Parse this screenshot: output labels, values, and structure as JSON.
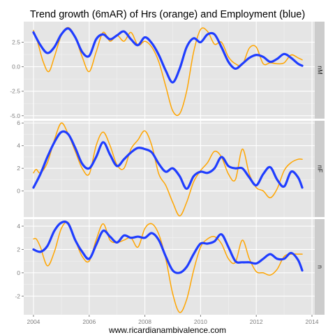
{
  "chart_data": {
    "type": "line",
    "title": "Trend growth (6mAR) of Hrs (orange) and Employment (blue)",
    "caption": "www.ricardianambivalence.com",
    "xlabel": "",
    "ylabel": "",
    "x_ticks": [
      "2004",
      "2006",
      "2008",
      "2010",
      "2012",
      "2014"
    ],
    "xlim": [
      2003.65,
      2014.1
    ],
    "grid": true,
    "legend": "none",
    "colors": {
      "hours": "#FFA500",
      "employment": "#1F3DFF",
      "panel_bg": "#E5E5E5",
      "strip_bg": "#CCCCCC",
      "grid": "#FFFFFF"
    },
    "panels": [
      {
        "strip": "nM",
        "ylim": [
          -5.3,
          4.6
        ],
        "y_ticks": [
          2.5,
          0,
          -2.5,
          -5
        ],
        "y_tick_labels": [
          "2.5",
          "0.0",
          "-2.5",
          "-5.0"
        ],
        "series": [
          {
            "color": "#FFA500",
            "x": [
              2004.0,
              2004.15,
              2004.35,
              2004.55,
              2004.75,
              2005.0,
              2005.25,
              2005.5,
              2005.75,
              2006.0,
              2006.25,
              2006.5,
              2006.75,
              2007.0,
              2007.25,
              2007.5,
              2007.75,
              2008.0,
              2008.25,
              2008.5,
              2008.75,
              2009.0,
              2009.25,
              2009.5,
              2009.75,
              2010.0,
              2010.25,
              2010.5,
              2010.75,
              2011.0,
              2011.25,
              2011.5,
              2011.75,
              2012.0,
              2012.25,
              2012.5,
              2012.75,
              2013.0,
              2013.25,
              2013.5,
              2013.65
            ],
            "y": [
              3.7,
              2.5,
              0.5,
              -0.5,
              1.0,
              3.2,
              4.0,
              3.0,
              1.0,
              -0.5,
              1.5,
              3.5,
              2.6,
              3.2,
              2.6,
              3.5,
              2.2,
              2.6,
              2.0,
              0.5,
              -2.0,
              -4.5,
              -4.8,
              -2.5,
              1.5,
              3.8,
              3.6,
              2.3,
              2.5,
              1.0,
              0.3,
              0.2,
              1.9,
              2.0,
              0.3,
              0.4,
              0.3,
              0.4,
              1.2,
              0.9,
              0.7
            ]
          },
          {
            "color": "#1F3DFF",
            "x": [
              2004.0,
              2004.25,
              2004.5,
              2004.75,
              2005.0,
              2005.25,
              2005.5,
              2005.75,
              2006.0,
              2006.25,
              2006.5,
              2006.75,
              2007.0,
              2007.25,
              2007.5,
              2007.75,
              2008.0,
              2008.25,
              2008.5,
              2008.75,
              2009.0,
              2009.25,
              2009.5,
              2009.75,
              2010.0,
              2010.25,
              2010.5,
              2010.75,
              2011.0,
              2011.25,
              2011.5,
              2011.75,
              2012.0,
              2012.25,
              2012.5,
              2012.75,
              2013.0,
              2013.25,
              2013.5,
              2013.65
            ],
            "y": [
              3.5,
              2.2,
              1.4,
              2.0,
              3.3,
              3.9,
              3.0,
              1.5,
              1.1,
              2.8,
              3.3,
              2.8,
              3.2,
              3.6,
              2.8,
              2.2,
              3.0,
              2.4,
              1.2,
              -0.4,
              -1.6,
              -0.2,
              2.0,
              2.9,
              2.5,
              3.3,
              3.3,
              2.0,
              0.5,
              -0.2,
              0.3,
              0.9,
              1.2,
              1.0,
              0.5,
              0.8,
              1.3,
              0.9,
              0.3,
              0.1
            ]
          }
        ]
      },
      {
        "strip": "nF",
        "ylim": [
          -2.3,
          6.2
        ],
        "y_ticks": [
          6,
          4,
          2,
          0
        ],
        "y_tick_labels": [
          "6",
          "4",
          "2",
          "0"
        ],
        "series": [
          {
            "color": "#FFA500",
            "x": [
              2004.0,
              2004.1,
              2004.25,
              2004.5,
              2004.75,
              2005.0,
              2005.25,
              2005.5,
              2005.75,
              2006.0,
              2006.25,
              2006.5,
              2006.75,
              2007.0,
              2007.25,
              2007.5,
              2007.75,
              2008.0,
              2008.25,
              2008.5,
              2008.75,
              2009.0,
              2009.25,
              2009.5,
              2009.75,
              2010.0,
              2010.25,
              2010.5,
              2010.75,
              2011.0,
              2011.25,
              2011.5,
              2011.75,
              2012.0,
              2012.25,
              2012.5,
              2012.75,
              2013.0,
              2013.25,
              2013.5,
              2013.65
            ],
            "y": [
              1.6,
              1.9,
              1.6,
              2.5,
              4.5,
              6.0,
              5.0,
              3.5,
              2.0,
              1.5,
              4.0,
              5.2,
              4.0,
              2.3,
              2.0,
              3.7,
              4.5,
              5.3,
              4.0,
              1.5,
              0.5,
              -1.0,
              -2.2,
              -1.0,
              0.8,
              1.8,
              2.5,
              3.5,
              3.0,
              1.5,
              1.0,
              3.7,
              1.5,
              0.3,
              0.0,
              -0.6,
              0.2,
              1.8,
              2.5,
              2.8,
              2.8
            ]
          },
          {
            "color": "#1F3DFF",
            "x": [
              2004.0,
              2004.25,
              2004.5,
              2004.75,
              2005.0,
              2005.25,
              2005.5,
              2005.75,
              2006.0,
              2006.25,
              2006.5,
              2006.75,
              2007.0,
              2007.25,
              2007.5,
              2007.75,
              2008.0,
              2008.25,
              2008.5,
              2008.75,
              2009.0,
              2009.25,
              2009.5,
              2009.75,
              2010.0,
              2010.25,
              2010.5,
              2010.75,
              2011.0,
              2011.25,
              2011.5,
              2011.75,
              2012.0,
              2012.25,
              2012.5,
              2012.75,
              2013.0,
              2013.25,
              2013.5,
              2013.65
            ],
            "y": [
              0.3,
              1.5,
              3.0,
              4.3,
              5.2,
              5.0,
              3.8,
              2.4,
              2.0,
              3.0,
              4.3,
              3.2,
              2.2,
              2.8,
              3.4,
              3.8,
              3.7,
              3.4,
              2.4,
              1.7,
              2.0,
              1.3,
              0.2,
              1.3,
              1.7,
              1.6,
              2.0,
              3.0,
              2.2,
              2.0,
              2.0,
              1.2,
              0.5,
              1.5,
              2.1,
              1.0,
              0.4,
              1.7,
              1.2,
              0.3
            ]
          }
        ]
      },
      {
        "strip": "n",
        "ylim": [
          -3.6,
          4.6
        ],
        "y_ticks": [
          4,
          2,
          0,
          -2
        ],
        "y_tick_labels": [
          "4",
          "2",
          "0",
          "-2"
        ],
        "series": [
          {
            "color": "#FFA500",
            "x": [
              2004.0,
              2004.1,
              2004.25,
              2004.5,
              2004.75,
              2005.0,
              2005.25,
              2005.5,
              2005.75,
              2006.0,
              2006.25,
              2006.5,
              2006.75,
              2007.0,
              2007.25,
              2007.5,
              2007.75,
              2008.0,
              2008.25,
              2008.5,
              2008.75,
              2009.0,
              2009.25,
              2009.5,
              2009.75,
              2010.0,
              2010.25,
              2010.5,
              2010.75,
              2011.0,
              2011.25,
              2011.5,
              2011.75,
              2012.0,
              2012.25,
              2012.5,
              2012.75,
              2013.0,
              2013.25,
              2013.5,
              2013.65
            ],
            "y": [
              2.9,
              2.9,
              2.2,
              0.6,
              1.8,
              3.8,
              4.3,
              2.8,
              1.4,
              1.0,
              2.8,
              4.2,
              2.8,
              2.6,
              2.8,
              3.0,
              2.2,
              3.8,
              4.2,
              3.3,
              1.2,
              -1.8,
              -3.4,
              -2.3,
              0.2,
              2.2,
              2.9,
              3.1,
              2.5,
              1.2,
              0.9,
              2.8,
              1.2,
              0.1,
              0.0,
              -0.2,
              0.3,
              1.4,
              1.6,
              1.6,
              1.6
            ]
          },
          {
            "color": "#1F3DFF",
            "x": [
              2004.0,
              2004.25,
              2004.5,
              2004.75,
              2005.0,
              2005.25,
              2005.5,
              2005.75,
              2006.0,
              2006.25,
              2006.5,
              2006.75,
              2007.0,
              2007.25,
              2007.5,
              2007.75,
              2008.0,
              2008.25,
              2008.5,
              2008.75,
              2009.0,
              2009.25,
              2009.5,
              2009.75,
              2010.0,
              2010.25,
              2010.5,
              2010.75,
              2011.0,
              2011.25,
              2011.5,
              2011.75,
              2012.0,
              2012.25,
              2012.5,
              2012.75,
              2013.0,
              2013.25,
              2013.5,
              2013.65
            ],
            "y": [
              2.0,
              1.8,
              2.3,
              3.6,
              4.3,
              4.2,
              2.8,
              1.8,
              1.2,
              2.4,
              3.6,
              3.1,
              2.6,
              3.2,
              3.0,
              3.1,
              3.0,
              3.4,
              2.8,
              1.4,
              0.2,
              0.0,
              0.5,
              1.6,
              2.5,
              2.5,
              2.7,
              3.3,
              2.2,
              1.0,
              0.9,
              0.9,
              0.8,
              1.2,
              1.6,
              1.2,
              1.2,
              1.7,
              1.1,
              0.2
            ]
          }
        ]
      }
    ]
  }
}
